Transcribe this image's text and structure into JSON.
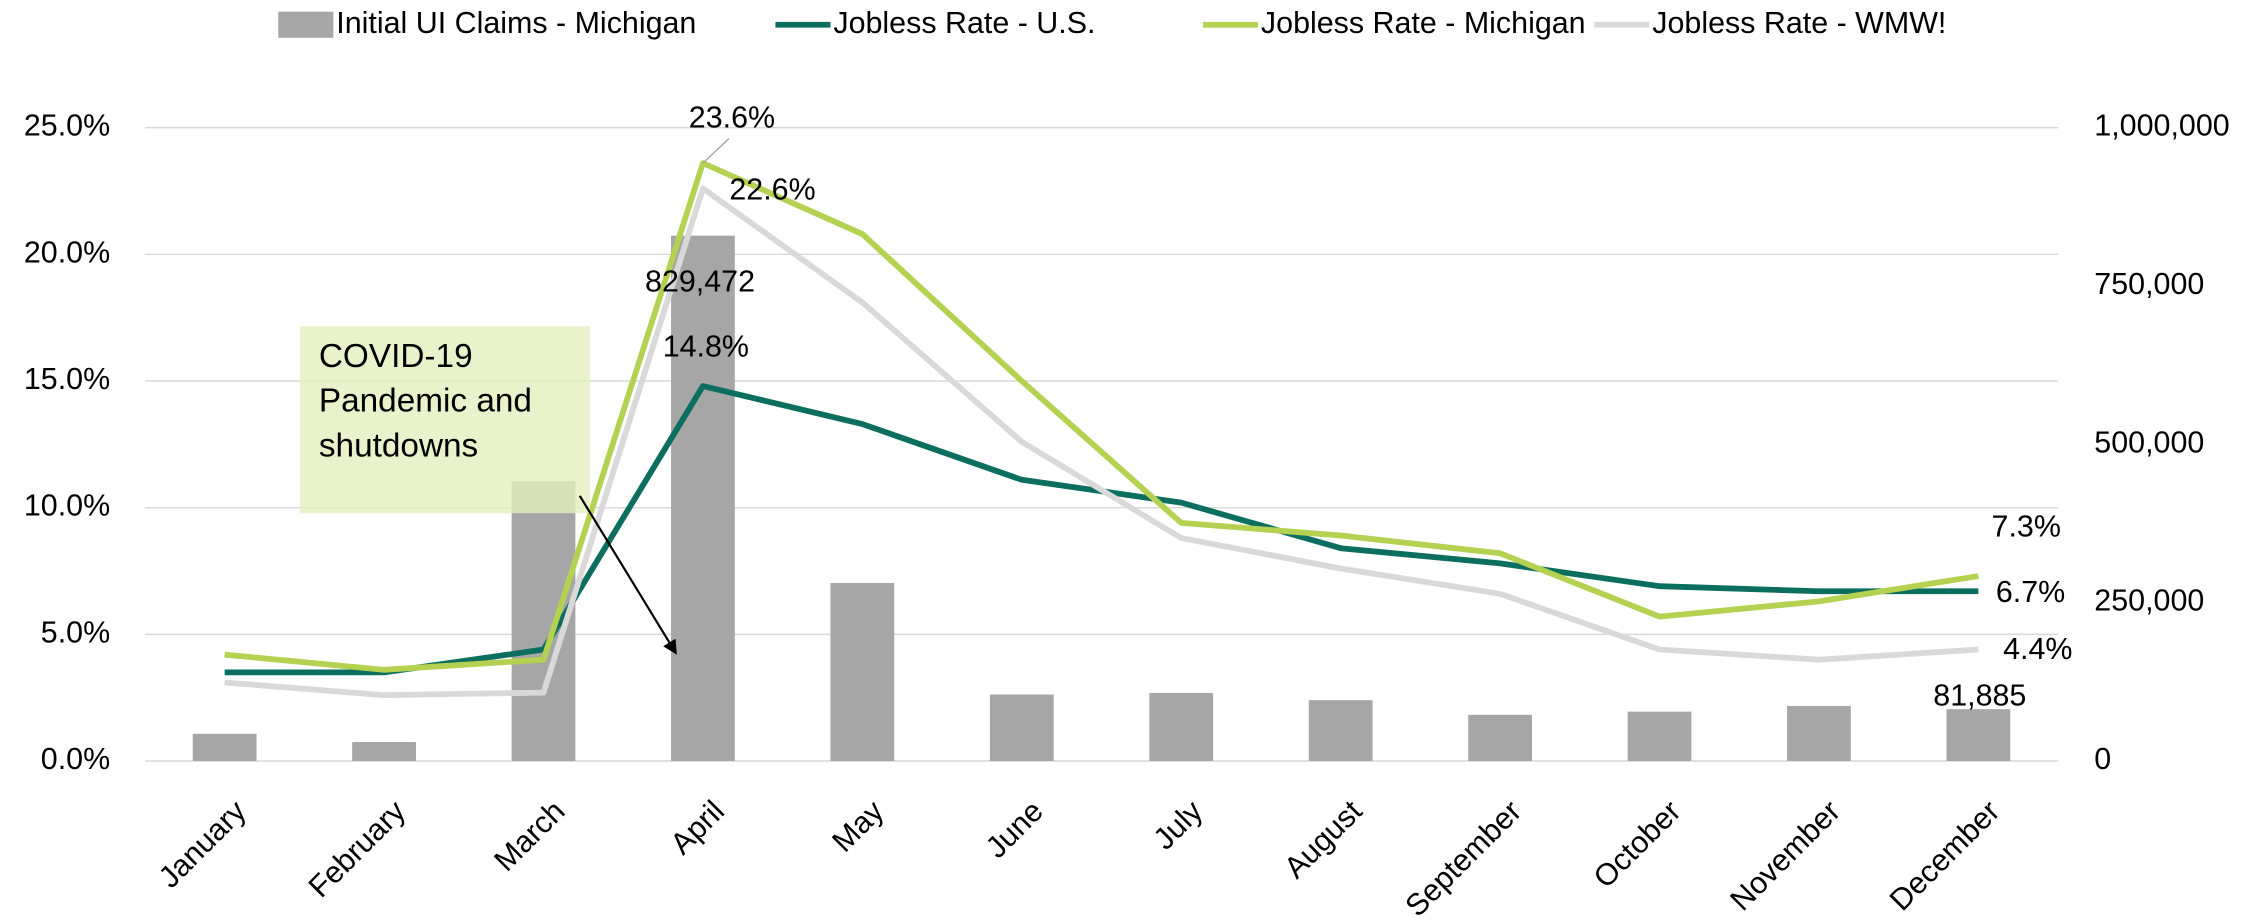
{
  "chart_data": {
    "type": "bar-line",
    "categories": [
      "January",
      "February",
      "March",
      "April",
      "May",
      "June",
      "July",
      "August",
      "September",
      "October",
      "November",
      "December"
    ],
    "series": [
      {
        "name": "Initial UI Claims - Michigan",
        "type": "bar",
        "axis": "y2",
        "color": "#a6a6a6",
        "values": [
          43000,
          30000,
          441600,
          829472,
          281000,
          105000,
          107500,
          96000,
          73000,
          78000,
          87000,
          81885
        ],
        "value_labels": [
          null,
          null,
          null,
          "829,472",
          null,
          null,
          null,
          null,
          null,
          null,
          null,
          "81,885"
        ]
      },
      {
        "name": "Jobless Rate - U.S.",
        "type": "line",
        "color": "#0b6e5f",
        "values": [
          3.5,
          3.5,
          4.4,
          14.8,
          13.3,
          11.1,
          10.2,
          8.4,
          7.8,
          6.9,
          6.7,
          6.7
        ],
        "value_labels": [
          null,
          null,
          null,
          "14.8%",
          null,
          null,
          null,
          null,
          null,
          null,
          null,
          "6.7%"
        ]
      },
      {
        "name": "Jobless Rate - Michigan",
        "type": "line",
        "color": "#b5d152",
        "values": [
          4.2,
          3.6,
          4.0,
          23.6,
          20.8,
          15.0,
          9.4,
          8.9,
          8.2,
          5.7,
          6.3,
          7.3
        ],
        "value_labels": [
          null,
          null,
          null,
          "23.6%",
          null,
          null,
          null,
          null,
          null,
          null,
          null,
          "7.3%"
        ]
      },
      {
        "name": "Jobless Rate - WMW!",
        "type": "line",
        "color": "#d9d9d9",
        "values": [
          3.1,
          2.6,
          2.7,
          22.6,
          18.1,
          12.6,
          8.8,
          7.6,
          6.6,
          4.4,
          4.0,
          4.4
        ],
        "value_labels": [
          null,
          null,
          null,
          "22.6%",
          null,
          null,
          null,
          null,
          null,
          null,
          null,
          "4.4%"
        ]
      }
    ],
    "ylim": [
      0,
      25
    ],
    "yticks": [
      {
        "value": 0,
        "label": "0.0%"
      },
      {
        "value": 5,
        "label": "5.0%"
      },
      {
        "value": 10,
        "label": "10.0%"
      },
      {
        "value": 15,
        "label": "15.0%"
      },
      {
        "value": 20,
        "label": "20.0%"
      },
      {
        "value": 25,
        "label": "25.0%"
      }
    ],
    "y2lim": [
      0,
      1000000
    ],
    "y2ticks": [
      0,
      {
        "value": 250000,
        "label": "250,000"
      },
      {
        "value": 500000,
        "label": "500,000"
      },
      {
        "value": 750000,
        "label": "750,000"
      },
      {
        "value": 1000000,
        "label": "1,000,000"
      }
    ],
    "grid": true,
    "legend": "top",
    "annotation": "COVID-19 Pandemic and shutdowns"
  }
}
